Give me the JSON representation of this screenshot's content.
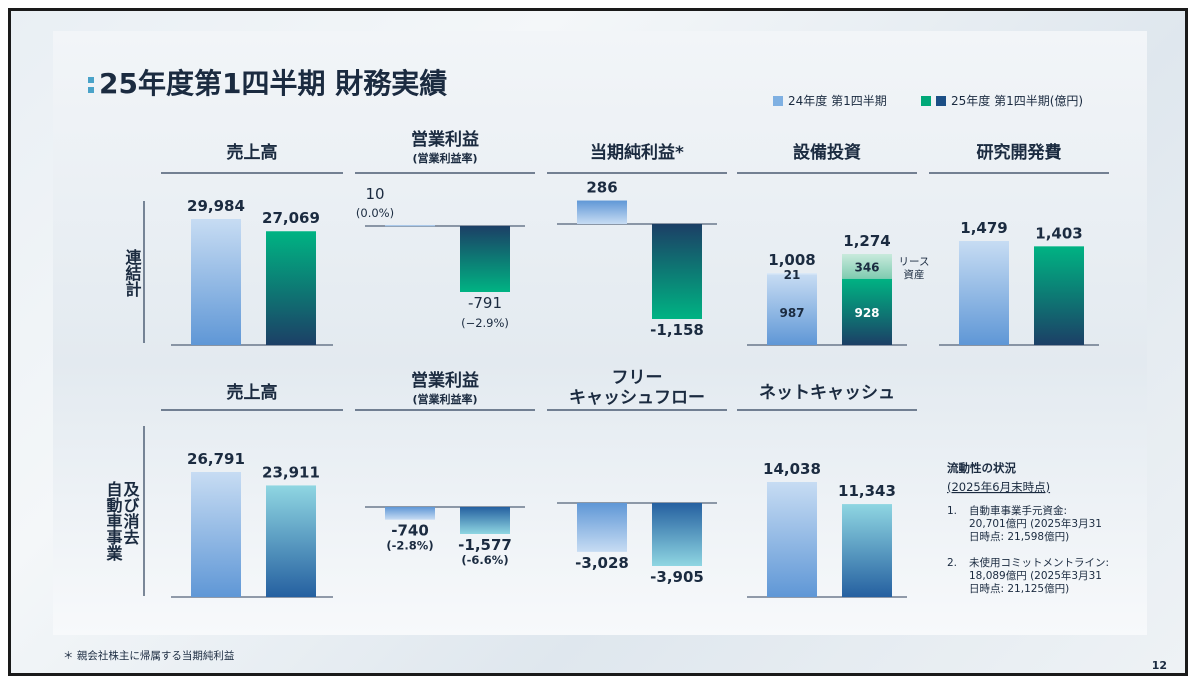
{
  "title": "25年度第1四半期 財務実績",
  "legend": {
    "fy24": "24年度 第1四半期",
    "fy25": "25年度 第1四半期(億円)"
  },
  "colors": {
    "fy24": "#6fa3dc",
    "fy25": "#00a878",
    "fy25_dark": "#1c3f66",
    "fy25_light": "#8fd0de",
    "title_accent": "#4aa3c9",
    "ink": "#1b2b40"
  },
  "rows": {
    "consolidated": "連結計",
    "auto": "自動車事業\n及び消去"
  },
  "chart_data": [
    {
      "type": "bar",
      "row": "連結計",
      "title": "売上高",
      "categories": [
        "24年度 第1四半期",
        "25年度 第1四半期"
      ],
      "values": [
        29984,
        27069
      ],
      "labels": [
        "29,984",
        "27,069"
      ]
    },
    {
      "type": "bar",
      "row": "連結計",
      "title": "営業利益",
      "subtitle": "(営業利益率)",
      "categories": [
        "24年度 第1四半期",
        "25年度 第1四半期"
      ],
      "values": [
        10,
        -791
      ],
      "labels": [
        "10",
        "-791"
      ],
      "sublabels": [
        "(0.0%)",
        "(−2.9%)"
      ]
    },
    {
      "type": "bar",
      "row": "連結計",
      "title": "当期純利益*",
      "categories": [
        "24年度 第1四半期",
        "25年度 第1四半期"
      ],
      "values": [
        286,
        -1158
      ],
      "labels": [
        "286",
        "-1,158"
      ]
    },
    {
      "type": "bar",
      "row": "連結計",
      "title": "設備投資",
      "categories": [
        "24年度 第1四半期",
        "25年度 第1四半期"
      ],
      "values": [
        1008,
        1274
      ],
      "labels": [
        "1,008",
        "1,274"
      ],
      "stack": {
        "base": [
          987,
          928
        ],
        "lease": [
          21,
          346
        ],
        "base_labels": [
          "987",
          "928"
        ],
        "lease_labels": [
          "21",
          "346"
        ],
        "lease_name": "リース\n資産"
      }
    },
    {
      "type": "bar",
      "row": "連結計",
      "title": "研究開発費",
      "categories": [
        "24年度 第1四半期",
        "25年度 第1四半期"
      ],
      "values": [
        1479,
        1403
      ],
      "labels": [
        "1,479",
        "1,403"
      ]
    },
    {
      "type": "bar",
      "row": "自動車事業及び消去",
      "title": "売上高",
      "categories": [
        "24年度 第1四半期",
        "25年度 第1四半期"
      ],
      "values": [
        26791,
        23911
      ],
      "labels": [
        "26,791",
        "23,911"
      ]
    },
    {
      "type": "bar",
      "row": "自動車事業及び消去",
      "title": "営業利益",
      "subtitle": "(営業利益率)",
      "categories": [
        "24年度 第1四半期",
        "25年度 第1四半期"
      ],
      "values": [
        -740,
        -1577
      ],
      "labels": [
        "-740",
        "-1,577"
      ],
      "sublabels": [
        "(-2.8%)",
        "(-6.6%)"
      ]
    },
    {
      "type": "bar",
      "row": "自動車事業及び消去",
      "title": "フリー\nキャッシュフロー",
      "categories": [
        "24年度 第1四半期",
        "25年度 第1四半期"
      ],
      "values": [
        -3028,
        -3905
      ],
      "labels": [
        "-3,028",
        "-3,905"
      ]
    },
    {
      "type": "bar",
      "row": "自動車事業及び消去",
      "title": "ネットキャッシュ",
      "categories": [
        "24年度 第1四半期",
        "25年度 第1四半期"
      ],
      "values": [
        14038,
        11343
      ],
      "labels": [
        "14,038",
        "11,343"
      ]
    }
  ],
  "liquidity": {
    "title": "流動性の状況",
    "subtitle": "(2025年6月末時点)",
    "items": [
      {
        "num": "1.",
        "lines": [
          "自動車事業手元資金:",
          "20,701億円 (2025年3月31",
          "日時点: 21,598億円)"
        ]
      },
      {
        "num": "2.",
        "lines": [
          "未使用コミットメントライン:",
          "18,089億円 (2025年3月31",
          "日時点: 21,125億円)"
        ]
      }
    ]
  },
  "footnote": "＊ 親会社株主に帰属する当期純利益",
  "page_number": "12"
}
